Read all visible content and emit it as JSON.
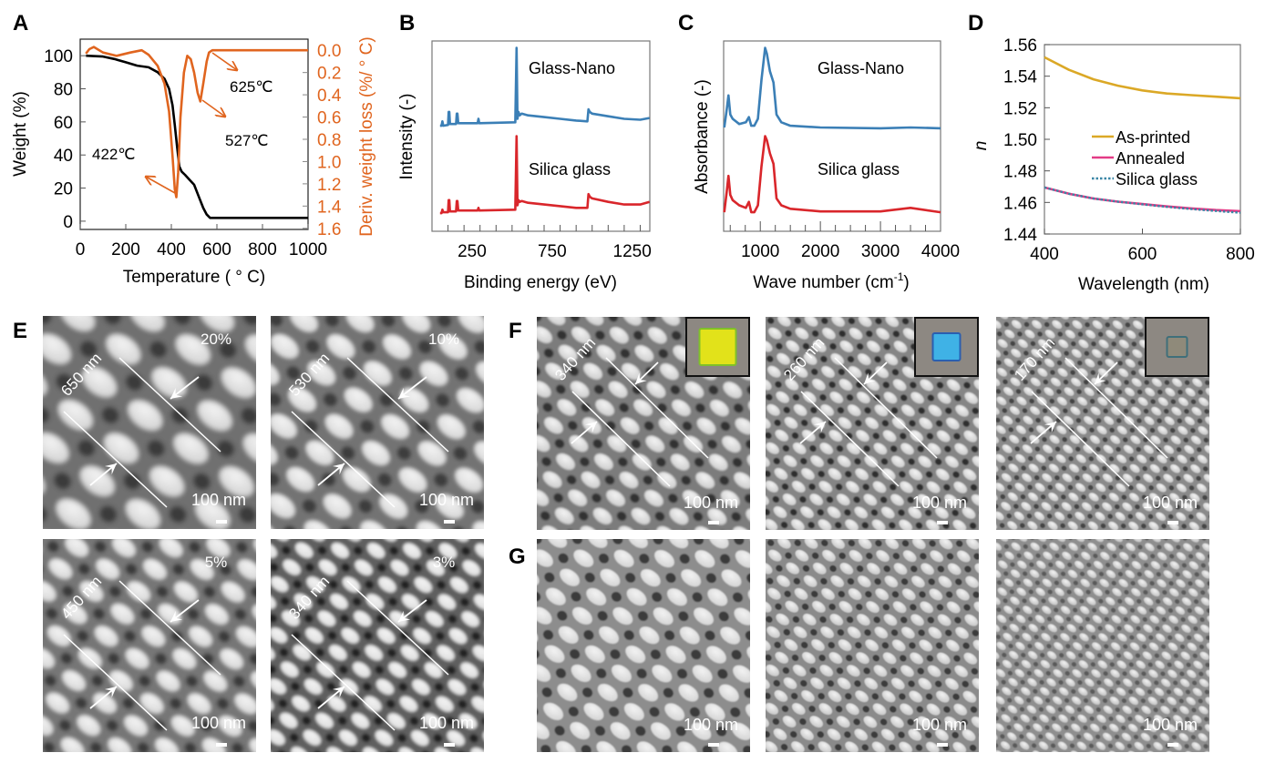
{
  "panel_labels": {
    "A": "A",
    "B": "B",
    "C": "C",
    "D": "D",
    "E": "E",
    "F": "F",
    "G": "G"
  },
  "chart_data": [
    {
      "panel": "A",
      "type": "line",
      "xlabel": "Temperature ( ° C)",
      "ylabel": "Weight (%)",
      "y2label": "Deriv. weight loss (%/ ° C)",
      "xlim": [
        0,
        1000
      ],
      "ylim": [
        -5,
        110
      ],
      "y2lim": [
        -0.1,
        1.61
      ],
      "y2_inverted": true,
      "xticks": [
        0,
        200,
        400,
        600,
        800,
        1000
      ],
      "yticks": [
        0,
        20,
        40,
        60,
        80,
        100
      ],
      "y2ticks": [
        "0.0",
        "0.2",
        "0.4",
        "0.6",
        "0.8",
        "1.0",
        "1.2",
        "1.4",
        "1.6"
      ],
      "series": [
        {
          "axis": "left",
          "color": "#000000",
          "x": [
            25,
            100,
            150,
            200,
            250,
            300,
            340,
            370,
            390,
            405,
            415,
            425,
            435,
            445,
            460,
            480,
            500,
            520,
            540,
            555,
            570,
            600,
            700,
            1000
          ],
          "y": [
            100,
            99.5,
            98,
            96,
            94,
            93,
            90,
            86,
            80,
            70,
            58,
            45,
            33,
            30,
            28,
            25,
            22,
            15,
            8,
            4,
            2,
            2,
            2,
            2
          ]
        },
        {
          "axis": "right",
          "color": "#e0651f",
          "x": [
            25,
            40,
            60,
            100,
            160,
            220,
            270,
            300,
            340,
            370,
            390,
            405,
            415,
            422,
            430,
            440,
            455,
            470,
            485,
            500,
            515,
            527,
            540,
            555,
            565,
            580,
            625,
            1000
          ],
          "y": [
            0.03,
            -0.01,
            -0.03,
            0.02,
            0.05,
            0.02,
            0.0,
            0.04,
            0.14,
            0.3,
            0.55,
            0.95,
            1.25,
            1.32,
            1.1,
            0.6,
            0.2,
            0.05,
            0.08,
            0.2,
            0.38,
            0.46,
            0.3,
            0.1,
            0.02,
            0.0,
            0.0,
            0.0
          ]
        }
      ],
      "annotations": [
        "625℃",
        "527℃",
        "422℃"
      ],
      "annotation_color": "#e0651f"
    },
    {
      "panel": "B",
      "type": "line",
      "xlabel": "Binding energy (eV)",
      "ylabel": "Intensity (-)",
      "xlim": [
        0,
        1360
      ],
      "ylim": [
        0,
        2.2
      ],
      "xticks": [
        250,
        750,
        1250
      ],
      "series": [
        {
          "name": "Glass-Nano",
          "color": "#3b7fb6",
          "x": [
            50,
            60,
            65,
            70,
            100,
            104,
            108,
            112,
            150,
            155,
            159,
            164,
            200,
            285,
            290,
            295,
            520,
            528,
            534,
            540,
            548,
            560,
            600,
            700,
            800,
            900,
            970,
            977,
            985,
            1000,
            1100,
            1200,
            1300,
            1358
          ],
          "y": [
            1.22,
            1.22,
            1.27,
            1.22,
            1.23,
            1.38,
            1.38,
            1.24,
            1.24,
            1.36,
            1.36,
            1.25,
            1.25,
            1.25,
            1.3,
            1.25,
            1.26,
            2.12,
            1.3,
            1.38,
            1.34,
            1.36,
            1.34,
            1.32,
            1.3,
            1.28,
            1.27,
            1.41,
            1.38,
            1.36,
            1.33,
            1.3,
            1.29,
            1.31
          ]
        },
        {
          "name": "Silica glass",
          "color": "#d9262b",
          "x": [
            50,
            60,
            65,
            70,
            100,
            104,
            108,
            112,
            150,
            155,
            159,
            164,
            200,
            285,
            290,
            295,
            520,
            528,
            534,
            540,
            548,
            560,
            600,
            700,
            800,
            900,
            970,
            977,
            985,
            1000,
            1100,
            1200,
            1300,
            1358
          ],
          "y": [
            0.21,
            0.21,
            0.25,
            0.22,
            0.22,
            0.36,
            0.36,
            0.23,
            0.23,
            0.35,
            0.35,
            0.24,
            0.24,
            0.24,
            0.27,
            0.24,
            0.25,
            1.1,
            0.3,
            0.36,
            0.34,
            0.35,
            0.33,
            0.31,
            0.29,
            0.27,
            0.27,
            0.43,
            0.4,
            0.38,
            0.34,
            0.31,
            0.31,
            0.34
          ]
        }
      ]
    },
    {
      "panel": "C",
      "type": "line",
      "xlabel": "Wave number (cm",
      "xlabel_sup": "-1",
      "xlabel_end": ")",
      "ylabel": "Absorbance (-)",
      "xlim": [
        390,
        4000
      ],
      "ylim": [
        0,
        2.2
      ],
      "xticks": [
        1000,
        2000,
        3000,
        4000
      ],
      "series": [
        {
          "name": "Glass-Nano",
          "color": "#3b7fb6",
          "x": [
            400,
            440,
            470,
            500,
            540,
            650,
            760,
            810,
            850,
            900,
            960,
            1020,
            1080,
            1110,
            1160,
            1220,
            1270,
            1350,
            1500,
            2000,
            3000,
            3500,
            4000
          ],
          "y": [
            1.2,
            1.4,
            1.57,
            1.35,
            1.3,
            1.24,
            1.26,
            1.32,
            1.22,
            1.22,
            1.3,
            1.75,
            2.12,
            2.05,
            1.85,
            1.72,
            1.35,
            1.26,
            1.22,
            1.2,
            1.19,
            1.2,
            1.19
          ]
        },
        {
          "name": "Silica glass",
          "color": "#d9262b",
          "x": [
            400,
            440,
            470,
            500,
            540,
            650,
            760,
            810,
            850,
            900,
            960,
            1020,
            1080,
            1110,
            1160,
            1220,
            1270,
            1350,
            1500,
            2000,
            3000,
            3500,
            4000
          ],
          "y": [
            0.22,
            0.45,
            0.64,
            0.42,
            0.36,
            0.3,
            0.27,
            0.34,
            0.22,
            0.22,
            0.3,
            0.75,
            1.1,
            1.05,
            0.9,
            0.78,
            0.38,
            0.3,
            0.26,
            0.23,
            0.23,
            0.27,
            0.22
          ]
        }
      ]
    },
    {
      "panel": "D",
      "type": "line",
      "xlabel": "Wavelength (nm)",
      "ylabel": "n",
      "xlim": [
        400,
        800
      ],
      "ylim": [
        1.44,
        1.56
      ],
      "xticks": [
        400,
        600,
        800
      ],
      "yticks": [
        "1.44",
        "1.46",
        "1.48",
        "1.50",
        "1.52",
        "1.54",
        "1.56"
      ],
      "legend_position": "center-right",
      "series": [
        {
          "name": "As-printed",
          "color": "#dba826",
          "style": "solid",
          "x": [
            400,
            450,
            500,
            550,
            600,
            650,
            700,
            750,
            800
          ],
          "y": [
            1.552,
            1.544,
            1.538,
            1.534,
            1.531,
            1.529,
            1.528,
            1.527,
            1.526
          ]
        },
        {
          "name": "Annealed",
          "color": "#e33b86",
          "style": "solid",
          "x": [
            400,
            450,
            500,
            550,
            600,
            650,
            700,
            750,
            800
          ],
          "y": [
            1.4695,
            1.4655,
            1.4625,
            1.4605,
            1.459,
            1.4575,
            1.4562,
            1.4552,
            1.4545
          ]
        },
        {
          "name": "Silica glass",
          "color": "#3a86a6",
          "style": "dotted",
          "x": [
            400,
            450,
            500,
            550,
            600,
            650,
            700,
            750,
            800
          ],
          "y": [
            1.4695,
            1.4655,
            1.4625,
            1.4605,
            1.4588,
            1.4572,
            1.4558,
            1.4546,
            1.4535
          ]
        }
      ]
    }
  ],
  "sem": {
    "E": [
      {
        "fill_factor": "20%",
        "period": "650 nm",
        "scale": "100 nm"
      },
      {
        "fill_factor": "10%",
        "period": "530 nm",
        "scale": "100 nm"
      },
      {
        "fill_factor": "5%",
        "period": "450 nm",
        "scale": "100 nm"
      },
      {
        "fill_factor": "3%",
        "period": "340 nm",
        "scale": "100 nm"
      }
    ],
    "F": [
      {
        "period": "340 nm",
        "scale": "100 nm",
        "inset_color": "#e2e21a"
      },
      {
        "period": "260 nm",
        "scale": "100 nm",
        "inset_color": "#3fb2e6"
      },
      {
        "period": "170 nm",
        "scale": "100 nm",
        "inset_color": "#8f8a7a"
      }
    ],
    "G": [
      {
        "scale": "100 nm"
      },
      {
        "scale": "100 nm"
      },
      {
        "scale": "100 nm"
      }
    ]
  }
}
